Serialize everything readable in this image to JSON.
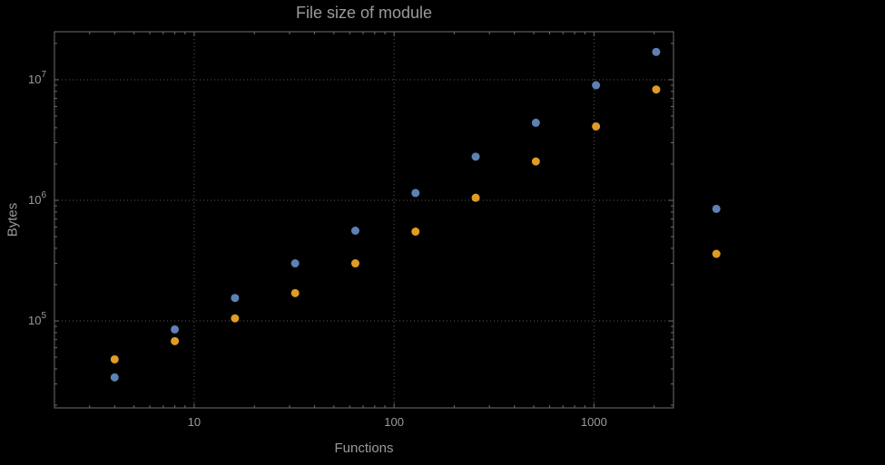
{
  "colors": {
    "background": "#000000",
    "frame": "#6e6e6e",
    "grid": "#5a5a5a",
    "text": "#9a9a9a",
    "series_blue": "#5e81b5",
    "series_orange": "#e09c24"
  },
  "chart_data": {
    "type": "scatter",
    "title": "File size of module",
    "xlabel": "Functions",
    "ylabel": "Bytes",
    "xscale": "log",
    "yscale": "log",
    "xlim": [
      2,
      2500
    ],
    "ylim": [
      19000,
      25000000
    ],
    "x_ticks": [
      10,
      100,
      1000
    ],
    "x_tick_labels": [
      "10",
      "100",
      "1000"
    ],
    "y_ticks": [
      100000,
      1000000,
      10000000
    ],
    "y_tick_labels": [
      "10^5",
      "10^6",
      "10^7"
    ],
    "grid": "dotted",
    "legend_position": "none",
    "x": [
      4,
      8,
      16,
      32,
      64,
      128,
      256,
      512,
      1024,
      2048,
      4096
    ],
    "series": [
      {
        "name": "blue",
        "color": "#5e81b5",
        "values": [
          34000,
          85000,
          155000,
          300000,
          560000,
          1150000,
          2300000,
          4400000,
          9000000,
          17000000,
          850000
        ]
      },
      {
        "name": "orange",
        "color": "#e09c24",
        "values": [
          48000,
          68000,
          105000,
          170000,
          300000,
          550000,
          1050000,
          2100000,
          4100000,
          8300000,
          360000
        ]
      }
    ]
  }
}
